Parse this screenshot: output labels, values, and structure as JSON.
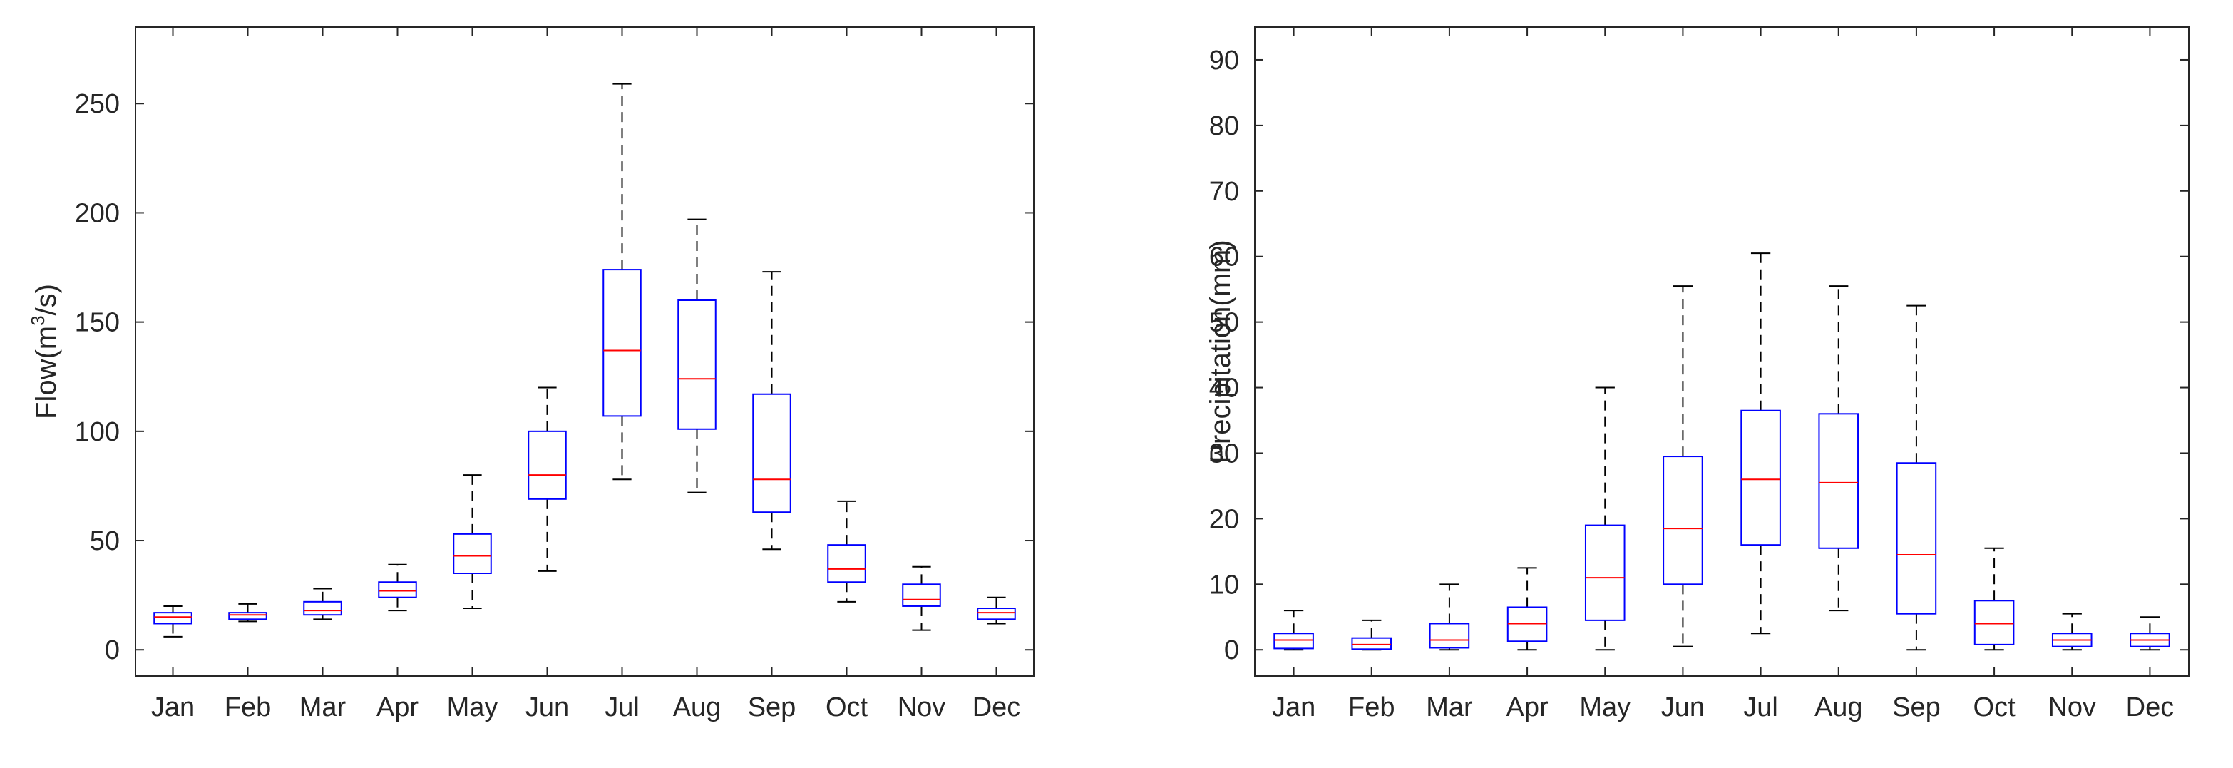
{
  "chart_data": [
    {
      "type": "boxplot",
      "title": "",
      "xlabel": "",
      "ylabel": "Flow(m3/s)",
      "ylabel_parts": {
        "prefix": "Flow(m",
        "superscript": "3",
        "suffix": "/s)"
      },
      "ylim": [
        -12,
        285
      ],
      "yticks": [
        0,
        50,
        100,
        150,
        200,
        250
      ],
      "categories": [
        "Jan",
        "Feb",
        "Mar",
        "Apr",
        "May",
        "Jun",
        "Jul",
        "Aug",
        "Sep",
        "Oct",
        "Nov",
        "Dec"
      ],
      "boxes": [
        {
          "whisker_low": 6,
          "q1": 12,
          "median": 15,
          "q3": 17,
          "whisker_high": 20
        },
        {
          "whisker_low": 13,
          "q1": 14,
          "median": 16,
          "q3": 17,
          "whisker_high": 21
        },
        {
          "whisker_low": 14,
          "q1": 16,
          "median": 18,
          "q3": 22,
          "whisker_high": 28
        },
        {
          "whisker_low": 18,
          "q1": 24,
          "median": 27,
          "q3": 31,
          "whisker_high": 39
        },
        {
          "whisker_low": 19,
          "q1": 35,
          "median": 43,
          "q3": 53,
          "whisker_high": 80
        },
        {
          "whisker_low": 36,
          "q1": 69,
          "median": 80,
          "q3": 100,
          "whisker_high": 120
        },
        {
          "whisker_low": 78,
          "q1": 107,
          "median": 137,
          "q3": 174,
          "whisker_high": 259
        },
        {
          "whisker_low": 72,
          "q1": 101,
          "median": 124,
          "q3": 160,
          "whisker_high": 197
        },
        {
          "whisker_low": 46,
          "q1": 63,
          "median": 78,
          "q3": 117,
          "whisker_high": 173
        },
        {
          "whisker_low": 22,
          "q1": 31,
          "median": 37,
          "q3": 48,
          "whisker_high": 68
        },
        {
          "whisker_low": 9,
          "q1": 20,
          "median": 23,
          "q3": 30,
          "whisker_high": 38
        },
        {
          "whisker_low": 12,
          "q1": 14,
          "median": 17,
          "q3": 19,
          "whisker_high": 24
        }
      ],
      "colors": {
        "box": "#0000ff",
        "median": "#ff0000",
        "whisker": "#000000",
        "axis": "#262626"
      }
    },
    {
      "type": "boxplot",
      "title": "",
      "xlabel": "",
      "ylabel": "Precipitation(mm)",
      "ylim": [
        -4,
        95
      ],
      "yticks": [
        0,
        10,
        20,
        30,
        40,
        50,
        60,
        70,
        80,
        90
      ],
      "categories": [
        "Jan",
        "Feb",
        "Mar",
        "Apr",
        "May",
        "Jun",
        "Jul",
        "Aug",
        "Sep",
        "Oct",
        "Nov",
        "Dec"
      ],
      "boxes": [
        {
          "whisker_low": 0,
          "q1": 0.2,
          "median": 1.5,
          "q3": 2.5,
          "whisker_high": 6
        },
        {
          "whisker_low": 0,
          "q1": 0.1,
          "median": 0.8,
          "q3": 1.8,
          "whisker_high": 4.5
        },
        {
          "whisker_low": 0,
          "q1": 0.3,
          "median": 1.5,
          "q3": 4,
          "whisker_high": 10
        },
        {
          "whisker_low": 0,
          "q1": 1.3,
          "median": 4,
          "q3": 6.5,
          "whisker_high": 12.5
        },
        {
          "whisker_low": 0,
          "q1": 4.5,
          "median": 11,
          "q3": 19,
          "whisker_high": 40
        },
        {
          "whisker_low": 0.5,
          "q1": 10,
          "median": 18.5,
          "q3": 29.5,
          "whisker_high": 55.5
        },
        {
          "whisker_low": 2.5,
          "q1": 16,
          "median": 26,
          "q3": 36.5,
          "whisker_high": 60.5
        },
        {
          "whisker_low": 6,
          "q1": 15.5,
          "median": 25.5,
          "q3": 36,
          "whisker_high": 55.5
        },
        {
          "whisker_low": 0,
          "q1": 5.5,
          "median": 14.5,
          "q3": 28.5,
          "whisker_high": 52.5
        },
        {
          "whisker_low": 0,
          "q1": 0.8,
          "median": 4,
          "q3": 7.5,
          "whisker_high": 15.5
        },
        {
          "whisker_low": 0,
          "q1": 0.5,
          "median": 1.5,
          "q3": 2.5,
          "whisker_high": 5.5
        },
        {
          "whisker_low": 0,
          "q1": 0.5,
          "median": 1.5,
          "q3": 2.5,
          "whisker_high": 5
        }
      ],
      "colors": {
        "box": "#0000ff",
        "median": "#ff0000",
        "whisker": "#000000",
        "axis": "#262626"
      }
    }
  ]
}
